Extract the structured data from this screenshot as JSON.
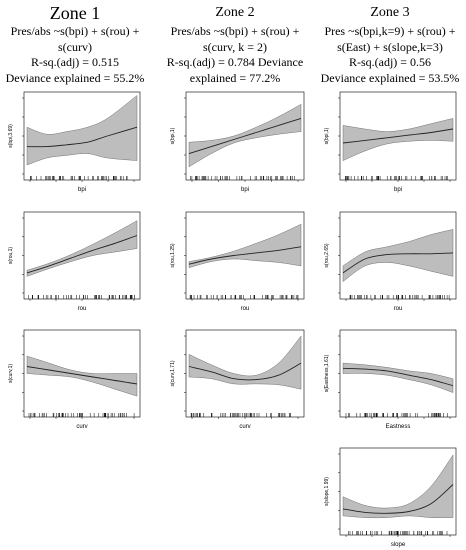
{
  "columns": [
    {
      "title": "Zone 1",
      "lines": [
        "Pres/abs ~s(bpi) + s(rou) +",
        "s(curv)",
        "R-sq.(adj) = 0.515",
        "Deviance explained = 55.2%"
      ]
    },
    {
      "title": "Zone 2",
      "lines": [
        "Pres/abs ~s(bpi) + s(rou) +",
        "s(curv, k = 2)",
        "R-sq.(adj) = 0.784 Deviance",
        "explained = 77.2%"
      ]
    },
    {
      "title": "Zone 3",
      "lines": [
        "Pres ~s(bpi,k=9) + s(rou) +",
        "s(East) + s(slope,k=3)",
        "R-sq.(adj) = 0.56",
        "Deviance explained = 53.5%"
      ]
    }
  ],
  "chart_data": [
    {
      "type": "line",
      "zone": "Zone 1",
      "xlabel": "bpi",
      "ylabel": "s(bpi,3.69)",
      "x": [
        0,
        0.18,
        0.36,
        0.55,
        0.73,
        1
      ],
      "series": [
        {
          "name": "fit",
          "values": [
            0.38,
            0.38,
            0.4,
            0.43,
            0.5,
            0.6
          ]
        },
        {
          "name": "upper",
          "values": [
            0.6,
            0.52,
            0.55,
            0.6,
            0.7,
            0.96
          ]
        },
        {
          "name": "lower",
          "values": [
            0.17,
            0.25,
            0.28,
            0.3,
            0.25,
            0.22
          ]
        }
      ]
    },
    {
      "type": "line",
      "zone": "Zone 2",
      "xlabel": "bpi",
      "ylabel": "s(bpi,1)",
      "x": [
        0,
        0.2,
        0.4,
        0.6,
        0.8,
        1
      ],
      "series": [
        {
          "name": "fit",
          "values": [
            0.3,
            0.38,
            0.46,
            0.54,
            0.62,
            0.7
          ]
        },
        {
          "name": "upper",
          "values": [
            0.43,
            0.45,
            0.5,
            0.6,
            0.72,
            0.86
          ]
        },
        {
          "name": "lower",
          "values": [
            0.15,
            0.3,
            0.42,
            0.48,
            0.52,
            0.55
          ]
        }
      ]
    },
    {
      "type": "line",
      "zone": "Zone 3",
      "xlabel": "bpi",
      "ylabel": "s(bpi,1)",
      "x": [
        0,
        0.2,
        0.4,
        0.6,
        0.8,
        1
      ],
      "series": [
        {
          "name": "fit",
          "values": [
            0.42,
            0.45,
            0.48,
            0.51,
            0.54,
            0.58
          ]
        },
        {
          "name": "upper",
          "values": [
            0.62,
            0.58,
            0.55,
            0.58,
            0.64,
            0.7
          ]
        },
        {
          "name": "lower",
          "values": [
            0.22,
            0.33,
            0.41,
            0.44,
            0.45,
            0.44
          ]
        }
      ]
    },
    {
      "type": "line",
      "zone": "Zone 1",
      "xlabel": "rou",
      "ylabel": "s(rou,1)",
      "x": [
        0,
        0.2,
        0.4,
        0.6,
        0.8,
        1
      ],
      "series": [
        {
          "name": "fit",
          "values": [
            0.3,
            0.38,
            0.47,
            0.56,
            0.64,
            0.73
          ]
        },
        {
          "name": "upper",
          "values": [
            0.33,
            0.41,
            0.51,
            0.63,
            0.76,
            0.9
          ]
        },
        {
          "name": "lower",
          "values": [
            0.26,
            0.35,
            0.43,
            0.5,
            0.54,
            0.58
          ]
        }
      ]
    },
    {
      "type": "line",
      "zone": "Zone 2",
      "xlabel": "rou",
      "ylabel": "s(rou,1.25)",
      "x": [
        0,
        0.2,
        0.4,
        0.6,
        0.8,
        1
      ],
      "series": [
        {
          "name": "fit",
          "values": [
            0.4,
            0.46,
            0.5,
            0.53,
            0.56,
            0.6
          ]
        },
        {
          "name": "upper",
          "values": [
            0.43,
            0.48,
            0.55,
            0.64,
            0.74,
            0.86
          ]
        },
        {
          "name": "lower",
          "values": [
            0.36,
            0.43,
            0.46,
            0.44,
            0.42,
            0.38
          ]
        }
      ]
    },
    {
      "type": "line",
      "zone": "Zone 3",
      "xlabel": "rou",
      "ylabel": "s(rou,2.65)",
      "x": [
        0,
        0.2,
        0.4,
        0.6,
        0.8,
        1
      ],
      "series": [
        {
          "name": "fit",
          "values": [
            0.3,
            0.46,
            0.51,
            0.52,
            0.52,
            0.53
          ]
        },
        {
          "name": "upper",
          "values": [
            0.38,
            0.54,
            0.6,
            0.66,
            0.74,
            0.8
          ]
        },
        {
          "name": "lower",
          "values": [
            0.2,
            0.38,
            0.42,
            0.38,
            0.32,
            0.26
          ]
        }
      ]
    },
    {
      "type": "line",
      "zone": "Zone 1",
      "xlabel": "curv",
      "ylabel": "s(curv,1)",
      "x": [
        0,
        0.2,
        0.4,
        0.6,
        0.8,
        1
      ],
      "series": [
        {
          "name": "fit",
          "values": [
            0.58,
            0.54,
            0.5,
            0.46,
            0.42,
            0.38
          ]
        },
        {
          "name": "upper",
          "values": [
            0.7,
            0.62,
            0.54,
            0.5,
            0.5,
            0.5
          ]
        },
        {
          "name": "lower",
          "values": [
            0.5,
            0.48,
            0.46,
            0.4,
            0.32,
            0.24
          ]
        }
      ]
    },
    {
      "type": "line",
      "zone": "Zone 2",
      "xlabel": "curv",
      "ylabel": "s(curv,1.71)",
      "x": [
        0,
        0.2,
        0.4,
        0.6,
        0.8,
        1
      ],
      "series": [
        {
          "name": "fit",
          "values": [
            0.58,
            0.52,
            0.44,
            0.43,
            0.48,
            0.62
          ]
        },
        {
          "name": "upper",
          "values": [
            0.72,
            0.6,
            0.5,
            0.48,
            0.62,
            0.93
          ]
        },
        {
          "name": "lower",
          "values": [
            0.46,
            0.44,
            0.38,
            0.38,
            0.37,
            0.32
          ]
        }
      ]
    },
    {
      "type": "line",
      "zone": "Zone 3",
      "xlabel": "Eastness",
      "ylabel": "s(Eastness,1.61)",
      "x": [
        0,
        0.2,
        0.4,
        0.6,
        0.8,
        1
      ],
      "series": [
        {
          "name": "fit",
          "values": [
            0.56,
            0.55,
            0.53,
            0.48,
            0.43,
            0.36
          ]
        },
        {
          "name": "upper",
          "values": [
            0.62,
            0.6,
            0.57,
            0.53,
            0.5,
            0.44
          ]
        },
        {
          "name": "lower",
          "values": [
            0.5,
            0.5,
            0.48,
            0.43,
            0.37,
            0.28
          ]
        }
      ]
    },
    {
      "type": "line",
      "zone": "Zone 3",
      "xlabel": "slope",
      "ylabel": "s(slope,1.99)",
      "x": [
        0,
        0.2,
        0.4,
        0.6,
        0.8,
        1
      ],
      "series": [
        {
          "name": "fit",
          "values": [
            0.3,
            0.26,
            0.25,
            0.27,
            0.36,
            0.58
          ]
        },
        {
          "name": "upper",
          "values": [
            0.44,
            0.34,
            0.31,
            0.36,
            0.56,
            0.92
          ]
        },
        {
          "name": "lower",
          "values": [
            0.22,
            0.2,
            0.2,
            0.22,
            0.2,
            0.2
          ]
        }
      ]
    }
  ]
}
